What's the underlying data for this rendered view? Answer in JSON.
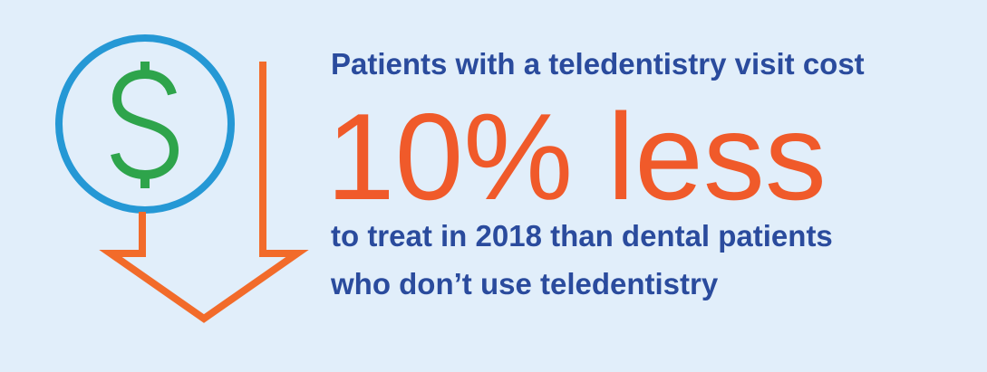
{
  "headline": {
    "intro": "Patients with a teledentistry visit cost",
    "big": "10% less",
    "line1": "to treat in 2018 than dental patients",
    "line2": "who don’t use teledentistry"
  }
}
